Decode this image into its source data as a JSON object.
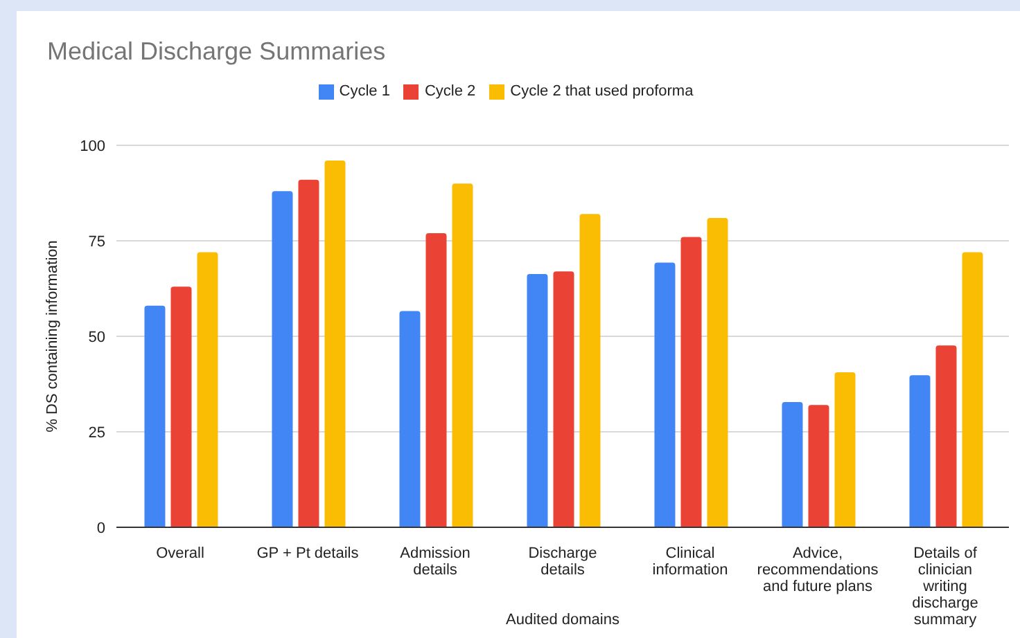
{
  "chart_data": {
    "type": "bar",
    "title": "Medical Discharge Summaries",
    "xlabel": "Audited domains",
    "ylabel": "% DS containing information",
    "categories": [
      "Overall",
      "GP + Pt details",
      "Admission details",
      "Discharge details",
      "Clinical information",
      "Advice, recommendations and future plans",
      "Details of clinician writing discharge summary"
    ],
    "series": [
      {
        "name": "Cycle 1",
        "color": "#4285f4",
        "values": [
          58,
          88,
          56.6,
          66.3,
          69.3,
          32.8,
          39.8
        ]
      },
      {
        "name": "Cycle 2",
        "color": "#ea4335",
        "values": [
          63,
          91,
          77,
          67,
          76,
          32,
          47.6
        ]
      },
      {
        "name": "Cycle 2 that used proforma",
        "color": "#fbbc04",
        "values": [
          72,
          96,
          90,
          82,
          81,
          40.6,
          72
        ]
      }
    ],
    "ylim": [
      0,
      100
    ],
    "yticks": [
      0,
      25,
      50,
      75,
      100
    ],
    "grid": "y",
    "legend": "top"
  }
}
